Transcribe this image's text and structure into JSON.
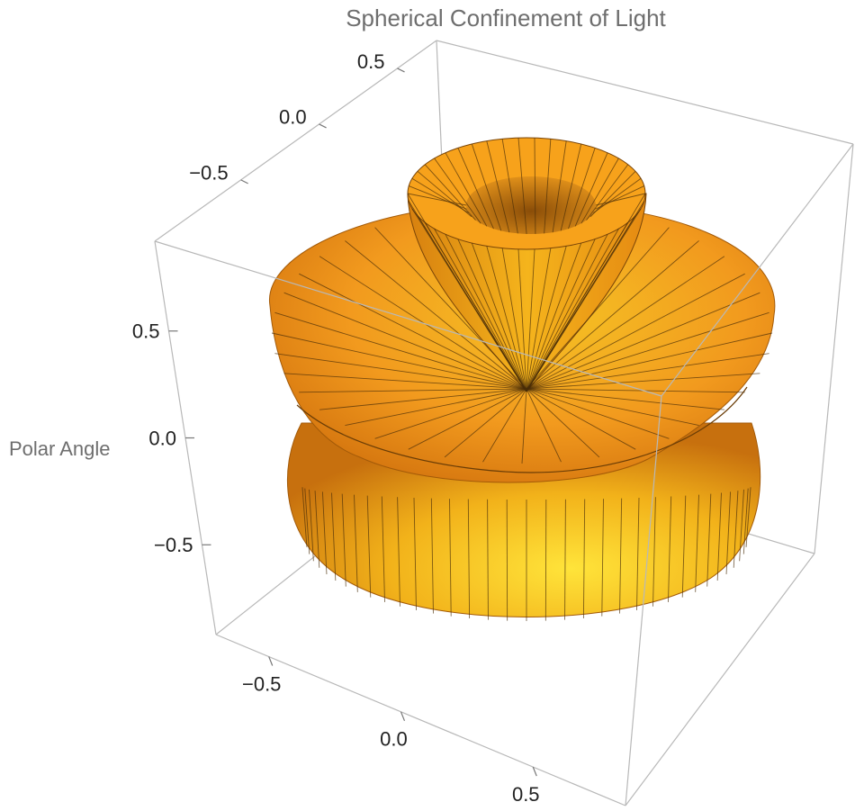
{
  "chart_data": {
    "type": "surface3d",
    "title": "Spherical Confinement of Light",
    "zlabel": "Polar Angle",
    "color": "#f7a21b",
    "xlim": [
      -0.7,
      0.85
    ],
    "xticks": [
      {
        "value": -0.5,
        "label": "−0.5"
      },
      {
        "value": 0,
        "label": "0.0"
      },
      0.5
    ],
    "ylim": [
      -1.05,
      0.75
    ],
    "yticks": [
      {
        "value": -0.5,
        "label": "−0.5"
      },
      {
        "value": 0,
        "label": "0.0"
      },
      0.5
    ],
    "zlim": [
      -0.92,
      0.92
    ],
    "zticks": [
      {
        "value": -0.5,
        "label": "−0.5"
      },
      {
        "value": 0,
        "label": "0.0"
      },
      0.5
    ]
  }
}
